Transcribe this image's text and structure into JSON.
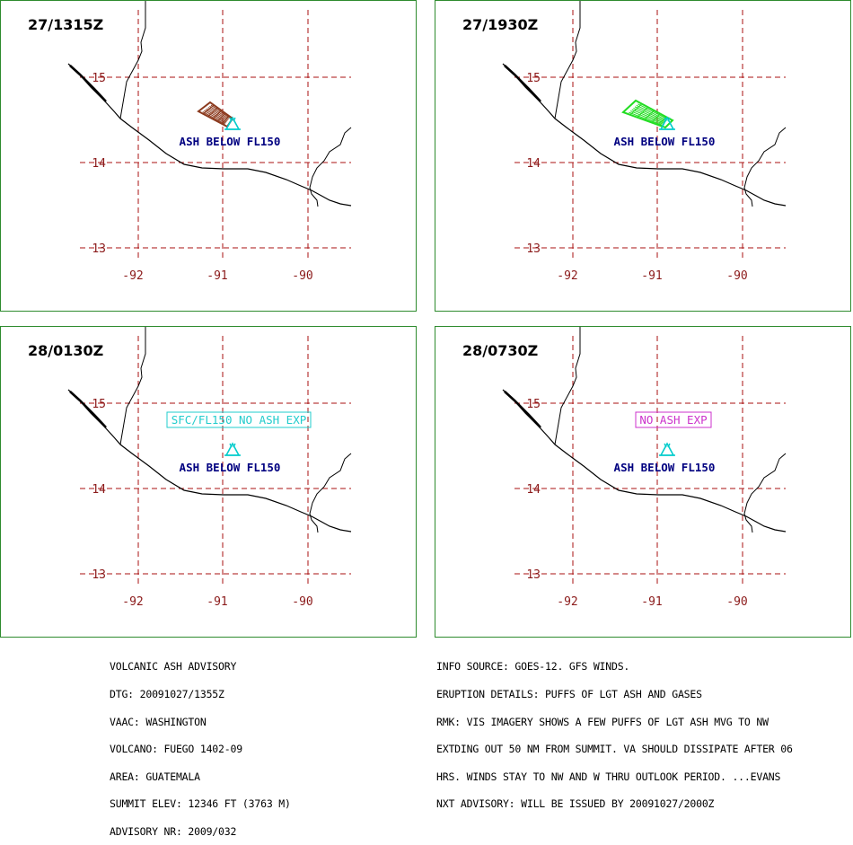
{
  "panels": [
    {
      "time_label": "27/1315Z",
      "ash_label": "ASH BELOW FL150",
      "ash_color": "#8b3a1e",
      "box_label": ""
    },
    {
      "time_label": "27/1930Z",
      "ash_label": "ASH BELOW FL150",
      "ash_color": "#22dd22",
      "box_label": ""
    },
    {
      "time_label": "28/0130Z",
      "ash_label": "ASH BELOW FL150",
      "ash_color": "",
      "box_label": "SFC/FL150 NO ASH EXP",
      "box_color": "#22cccc"
    },
    {
      "time_label": "28/0730Z",
      "ash_label": "ASH BELOW FL150",
      "ash_color": "",
      "box_label": "NO ASH EXP",
      "box_color": "#cc33cc"
    }
  ],
  "map": {
    "lat_labels": [
      "15",
      "14",
      "13"
    ],
    "lon_labels": [
      "-92",
      "-91",
      "-90"
    ],
    "grid_color": "#aa1111",
    "label_color": "#8b1a1a",
    "ash_label_color": "#000080",
    "volcano_color": "#00cccc",
    "volcano_icon": "triangle-volcano-icon"
  },
  "advisory_left": [
    "VOLCANIC ASH ADVISORY",
    "DTG: 20091027/1355Z",
    "VAAC: WASHINGTON",
    "VOLCANO: FUEGO 1402-09",
    "AREA: GUATEMALA",
    "SUMMIT ELEV: 12346 FT (3763 M)",
    "ADVISORY NR: 2009/032"
  ],
  "advisory_right": [
    "INFO SOURCE: GOES-12. GFS WINDS.",
    "ERUPTION DETAILS: PUFFS OF LGT ASH AND GASES",
    "RMK: VIS IMAGERY SHOWS A FEW PUFFS OF LGT ASH MVG TO NW",
    "EXTDING OUT 50 NM FROM SUMMIT. VA SHOULD DISSIPATE AFTER 06",
    "HRS. WINDS STAY TO NW AND W THRU OUTLOOK PERIOD. ...EVANS",
    "NXT ADVISORY: WILL BE ISSUED BY 20091027/2000Z"
  ]
}
